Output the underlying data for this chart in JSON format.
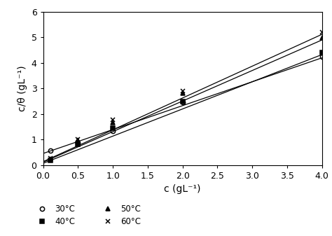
{
  "xlabel": "c (gL⁻¹)",
  "ylabel": "c/θ (gL⁻¹)",
  "xlim": [
    0,
    4
  ],
  "ylim": [
    0,
    6
  ],
  "xticks": [
    0,
    0.5,
    1,
    1.5,
    2,
    2.5,
    3,
    3.5,
    4
  ],
  "yticks": [
    0,
    1,
    2,
    3,
    4,
    5,
    6
  ],
  "series": [
    {
      "label": "30°C",
      "x_data": [
        0.1,
        0.5,
        1.0,
        2.0,
        4.0
      ],
      "y_data": [
        0.57,
        0.88,
        1.35,
        2.45,
        4.25
      ],
      "marker": "o",
      "fillstyle": "none",
      "color": "#000000",
      "line_slope": 0.935,
      "line_intercept": 0.46
    },
    {
      "label": "40°C",
      "x_data": [
        0.1,
        0.5,
        1.0,
        2.0,
        4.0
      ],
      "y_data": [
        0.18,
        0.82,
        1.46,
        2.5,
        4.42
      ],
      "marker": "s",
      "fillstyle": "full",
      "color": "#000000",
      "line_slope": 1.063,
      "line_intercept": 0.075
    },
    {
      "label": "50°C",
      "x_data": [
        0.1,
        0.5,
        1.0,
        2.0,
        4.0
      ],
      "y_data": [
        0.25,
        0.97,
        1.68,
        2.82,
        4.98
      ],
      "marker": "^",
      "fillstyle": "full",
      "color": "#000000",
      "line_slope": 1.195,
      "line_intercept": 0.12
    },
    {
      "label": "60°C",
      "x_data": [
        0.1,
        0.5,
        1.0,
        2.0,
        4.0
      ],
      "y_data": [
        0.28,
        1.02,
        1.78,
        2.9,
        5.2
      ],
      "marker": "x",
      "fillstyle": "full",
      "color": "#000000",
      "line_slope": 1.245,
      "line_intercept": 0.14
    }
  ],
  "background_color": "#ffffff",
  "line_color": "#000000",
  "fontsize_label": 10,
  "fontsize_tick": 9,
  "fontsize_legend": 8.5
}
